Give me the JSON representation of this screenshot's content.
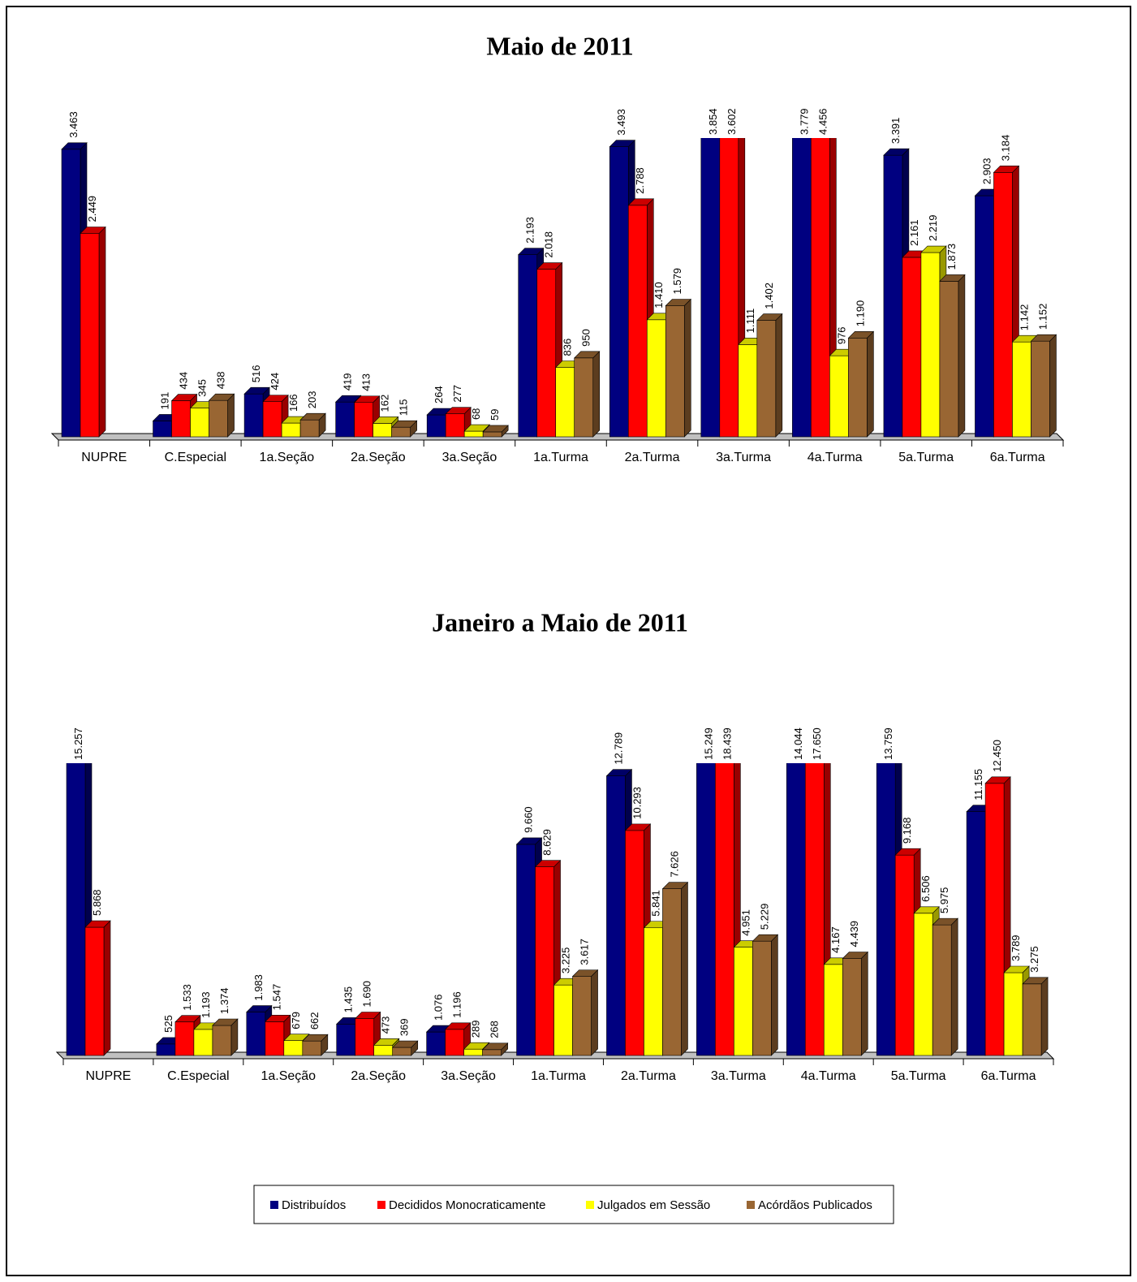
{
  "chart_data": [
    {
      "type": "bar3d",
      "title": "Maio de 2011",
      "categories": [
        "NUPRE",
        "C.Especial",
        "1a.Seção",
        "2a.Seção",
        "3a.Seção",
        "1a.Turma",
        "2a.Turma",
        "3a.Turma",
        "4a.Turma",
        "5a.Turma",
        "6a.Turma"
      ],
      "ylim": [
        0,
        3500
      ],
      "series": [
        {
          "color": "#000080",
          "values": [
            3463,
            191,
            516,
            419,
            264,
            2193,
            3493,
            3854,
            3779,
            3391,
            2903
          ],
          "value_labels": [
            "3.463",
            "191",
            "516",
            "419",
            "264",
            "2.193",
            "3.493",
            "3.854",
            "3.779",
            "3.391",
            "2.903"
          ]
        },
        {
          "color": "#ff0000",
          "values": [
            2449,
            434,
            424,
            413,
            277,
            2018,
            2788,
            3602,
            4456,
            2161,
            3184
          ],
          "value_labels": [
            "2.449",
            "434",
            "424",
            "413",
            "277",
            "2.018",
            "2.788",
            "3.602",
            "4.456",
            "2.161",
            "3.184"
          ]
        },
        {
          "color": "#ffff00",
          "values": [
            null,
            345,
            166,
            162,
            68,
            836,
            1410,
            1111,
            976,
            2219,
            1142
          ],
          "value_labels": [
            null,
            "345",
            "166",
            "162",
            "68",
            "836",
            "1.410",
            "1.111",
            "976",
            "2.219",
            "1.142"
          ]
        },
        {
          "color": "#996633",
          "values": [
            null,
            438,
            203,
            115,
            59,
            950,
            1579,
            1402,
            1190,
            1873,
            1152
          ],
          "value_labels": [
            null,
            "438",
            "203",
            "115",
            "59",
            "950",
            "1.579",
            "1.402",
            "1.190",
            "1.873",
            "1.152"
          ]
        }
      ]
    },
    {
      "type": "bar3d",
      "title": "Janeiro a Maio de 2011",
      "categories": [
        "NUPRE",
        "C.Especial",
        "1a.Seção",
        "2a.Seção",
        "3a.Seção",
        "1a.Turma",
        "2a.Turma",
        "3a.Turma",
        "4a.Turma",
        "5a.Turma",
        "6a.Turma"
      ],
      "ylim": [
        0,
        13000
      ],
      "legend": "bottom",
      "series": [
        {
          "name": "Distribuídos",
          "color": "#000080",
          "values": [
            15257,
            525,
            1983,
            1435,
            1076,
            9660,
            12789,
            15249,
            14044,
            13759,
            11155
          ],
          "value_labels": [
            "15.257",
            "525",
            "1.983",
            "1.435",
            "1.076",
            "9.660",
            "12.789",
            "15.249",
            "14.044",
            "13.759",
            "11.155"
          ]
        },
        {
          "name": "Decididos Monocraticamente",
          "color": "#ff0000",
          "values": [
            5868,
            1533,
            1547,
            1690,
            1196,
            8629,
            10293,
            18439,
            17650,
            9168,
            12450
          ],
          "value_labels": [
            "5.868",
            "1.533",
            "1.547",
            "1.690",
            "1.196",
            "8.629",
            "10.293",
            "18.439",
            "17.650",
            "9.168",
            "12.450"
          ]
        },
        {
          "name": "Julgados em Sessão",
          "color": "#ffff00",
          "values": [
            null,
            1193,
            679,
            473,
            289,
            3225,
            5841,
            4951,
            4167,
            6506,
            3789
          ],
          "value_labels": [
            null,
            "1.193",
            "679",
            "473",
            "289",
            "3.225",
            "5.841",
            "4.951",
            "4.167",
            "6.506",
            "3.789"
          ]
        },
        {
          "name": "Acórdãos Publicados",
          "color": "#996633",
          "values": [
            null,
            1374,
            662,
            369,
            268,
            3617,
            7626,
            5229,
            4439,
            5975,
            3275
          ],
          "value_labels": [
            null,
            "1.374",
            "662",
            "369",
            "268",
            "3.617",
            "7.626",
            "5.229",
            "4.439",
            "5.975",
            "3.275"
          ]
        }
      ]
    }
  ]
}
